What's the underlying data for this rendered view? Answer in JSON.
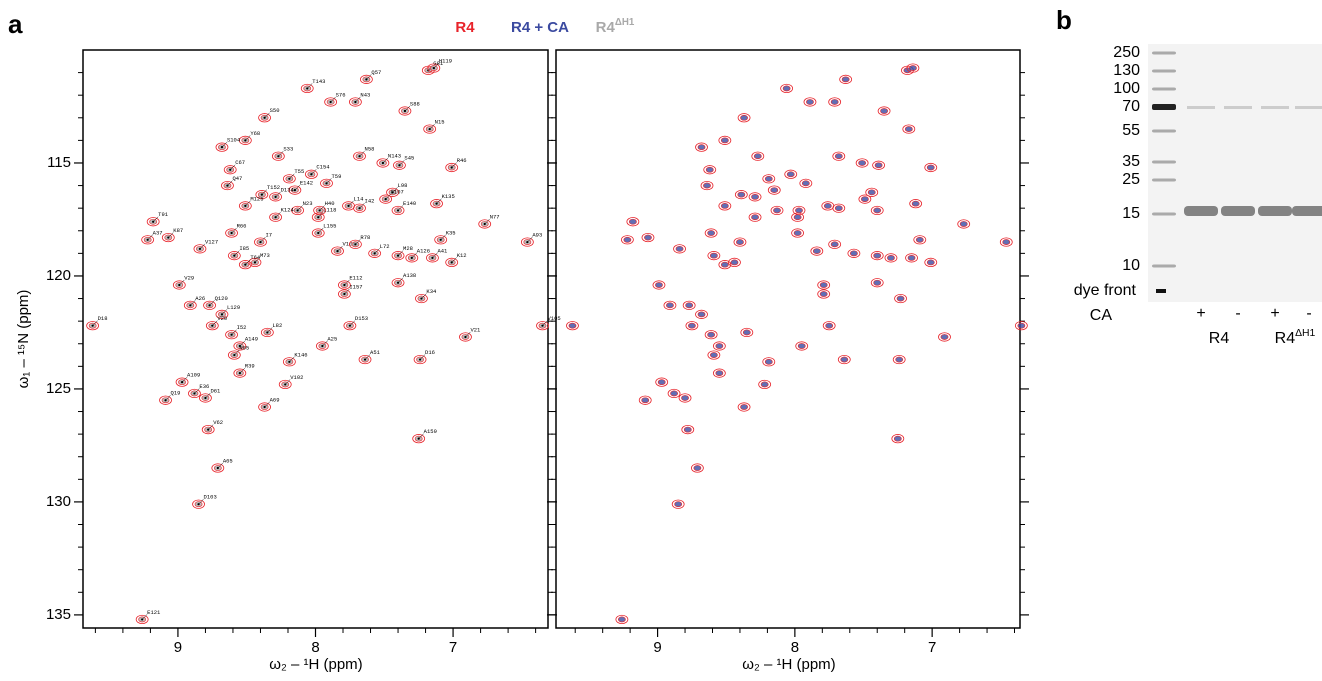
{
  "figure": {
    "panel_a": {
      "letter": "a",
      "legend": [
        {
          "name": "R4",
          "color": "#e8232a"
        },
        {
          "name": "R4 + CA",
          "color": "#3b4aa0"
        },
        {
          "name": "R4",
          "sup": "ΔH1",
          "color": "#a9a9a9"
        }
      ],
      "xlabel": "ω₂ – ¹H (ppm)",
      "ylabel": "ω₁ – ¹⁵N (ppm)",
      "xticks": [
        9,
        8,
        7
      ],
      "x_minor_ticks": [
        9.6,
        9.4,
        9.2,
        8.8,
        8.6,
        8.4,
        8.2,
        7.8,
        7.6,
        7.4,
        7.2,
        6.8,
        6.6,
        6.4
      ],
      "yticks": [
        115,
        120,
        125,
        130,
        135
      ],
      "y_minor_ticks": [
        111,
        112,
        113,
        114,
        116,
        117,
        118,
        119,
        121,
        122,
        123,
        124,
        126,
        127,
        128,
        129,
        131,
        132,
        133,
        134
      ],
      "plots": [
        {
          "xlim": [
            9.69,
            6.31
          ],
          "ylim": [
            110,
            135.58
          ],
          "overlay": 2,
          "labeled": true
        },
        {
          "xlim": [
            9.74,
            6.36
          ],
          "ylim": [
            110,
            135.58
          ],
          "overlay": 1,
          "labeled": false
        }
      ],
      "peaks": [
        {
          "label": "G81",
          "x": 7.18,
          "y": 110.9
        },
        {
          "label": "H119",
          "x": 7.14,
          "y": 110.8
        },
        {
          "label": "T143",
          "x": 8.06,
          "y": 111.7
        },
        {
          "label": "Q57",
          "x": 7.63,
          "y": 111.3
        },
        {
          "label": "S76",
          "x": 7.89,
          "y": 112.3
        },
        {
          "label": "N43",
          "x": 7.71,
          "y": 112.3
        },
        {
          "label": "S88",
          "x": 7.35,
          "y": 112.7
        },
        {
          "label": "S50",
          "x": 8.37,
          "y": 113.0
        },
        {
          "label": "N15",
          "x": 7.17,
          "y": 113.5
        },
        {
          "label": "Y68",
          "x": 8.51,
          "y": 114.0
        },
        {
          "label": "S104",
          "x": 8.68,
          "y": 114.3
        },
        {
          "label": "S33",
          "x": 8.27,
          "y": 114.7
        },
        {
          "label": "N58",
          "x": 7.68,
          "y": 114.7
        },
        {
          "label": "N143",
          "x": 7.51,
          "y": 115.0
        },
        {
          "label": "S45",
          "x": 7.39,
          "y": 115.1
        },
        {
          "label": "R46",
          "x": 7.01,
          "y": 115.2
        },
        {
          "label": "C67",
          "x": 8.62,
          "y": 115.3
        },
        {
          "label": "C154",
          "x": 8.03,
          "y": 115.5
        },
        {
          "label": "T55",
          "x": 8.19,
          "y": 115.7
        },
        {
          "label": "T59",
          "x": 7.92,
          "y": 115.9
        },
        {
          "label": "Q47",
          "x": 8.64,
          "y": 116.0
        },
        {
          "label": "E142",
          "x": 8.15,
          "y": 116.2
        },
        {
          "label": "T152",
          "x": 8.39,
          "y": 116.4
        },
        {
          "label": "D134",
          "x": 8.29,
          "y": 116.5
        },
        {
          "label": "L98",
          "x": 7.44,
          "y": 116.3
        },
        {
          "label": "K135",
          "x": 7.12,
          "y": 116.8
        },
        {
          "label": "S107",
          "x": 7.49,
          "y": 116.6
        },
        {
          "label": "M125",
          "x": 8.51,
          "y": 116.9
        },
        {
          "label": "N23",
          "x": 8.13,
          "y": 117.1
        },
        {
          "label": "H40",
          "x": 7.97,
          "y": 117.1
        },
        {
          "label": "L14",
          "x": 7.76,
          "y": 116.9
        },
        {
          "label": "I42",
          "x": 7.68,
          "y": 117.0
        },
        {
          "label": "E140",
          "x": 7.4,
          "y": 117.1
        },
        {
          "label": "K124",
          "x": 8.29,
          "y": 117.4
        },
        {
          "label": "L118",
          "x": 7.98,
          "y": 117.4
        },
        {
          "label": "T91",
          "x": 9.18,
          "y": 117.6
        },
        {
          "label": "N77",
          "x": 6.77,
          "y": 117.7
        },
        {
          "label": "A37",
          "x": 9.22,
          "y": 118.4
        },
        {
          "label": "K87",
          "x": 9.07,
          "y": 118.3
        },
        {
          "label": "V127",
          "x": 8.84,
          "y": 118.8
        },
        {
          "label": "K35",
          "x": 7.09,
          "y": 118.4
        },
        {
          "label": "A93",
          "x": 6.46,
          "y": 118.5
        },
        {
          "label": "R66",
          "x": 8.61,
          "y": 118.1
        },
        {
          "label": "I7",
          "x": 8.4,
          "y": 118.5
        },
        {
          "label": "L155",
          "x": 7.98,
          "y": 118.1
        },
        {
          "label": "V108",
          "x": 7.84,
          "y": 118.9
        },
        {
          "label": "R78",
          "x": 7.71,
          "y": 118.6
        },
        {
          "label": "A41",
          "x": 7.15,
          "y": 119.2
        },
        {
          "label": "K12",
          "x": 7.01,
          "y": 119.4
        },
        {
          "label": "A126",
          "x": 7.3,
          "y": 119.2
        },
        {
          "label": "M28",
          "x": 7.4,
          "y": 119.1
        },
        {
          "label": "I85",
          "x": 8.59,
          "y": 119.1
        },
        {
          "label": "L72",
          "x": 7.57,
          "y": 119.0
        },
        {
          "label": "M73",
          "x": 8.44,
          "y": 119.4
        },
        {
          "label": "T64",
          "x": 8.51,
          "y": 119.5
        },
        {
          "label": "V29",
          "x": 8.99,
          "y": 120.4
        },
        {
          "label": "K34",
          "x": 7.23,
          "y": 121.0
        },
        {
          "label": "A138",
          "x": 7.4,
          "y": 120.3
        },
        {
          "label": "E112",
          "x": 7.79,
          "y": 120.4
        },
        {
          "label": "I157",
          "x": 7.79,
          "y": 120.8
        },
        {
          "label": "A26",
          "x": 8.91,
          "y": 121.3
        },
        {
          "label": "Q120",
          "x": 8.77,
          "y": 121.3
        },
        {
          "label": "L129",
          "x": 8.68,
          "y": 121.7
        },
        {
          "label": "V20",
          "x": 8.75,
          "y": 122.2
        },
        {
          "label": "D18",
          "x": 9.62,
          "y": 122.2
        },
        {
          "label": "V105",
          "x": 6.35,
          "y": 122.2
        },
        {
          "label": "V21",
          "x": 6.91,
          "y": 122.7
        },
        {
          "label": "D153",
          "x": 7.75,
          "y": 122.2
        },
        {
          "label": "L82",
          "x": 8.35,
          "y": 122.5
        },
        {
          "label": "I52",
          "x": 8.61,
          "y": 122.6
        },
        {
          "label": "A149",
          "x": 8.55,
          "y": 123.1
        },
        {
          "label": "A25",
          "x": 7.95,
          "y": 123.1
        },
        {
          "label": "N65",
          "x": 8.59,
          "y": 123.5
        },
        {
          "label": "A51",
          "x": 7.64,
          "y": 123.7
        },
        {
          "label": "D16",
          "x": 7.24,
          "y": 123.7
        },
        {
          "label": "K146",
          "x": 8.19,
          "y": 123.8
        },
        {
          "label": "R39",
          "x": 8.55,
          "y": 124.3
        },
        {
          "label": "V102",
          "x": 8.22,
          "y": 124.8
        },
        {
          "label": "A109",
          "x": 8.97,
          "y": 124.7
        },
        {
          "label": "E36",
          "x": 8.88,
          "y": 125.2
        },
        {
          "label": "D61",
          "x": 8.8,
          "y": 125.4
        },
        {
          "label": "Q19",
          "x": 9.09,
          "y": 125.5
        },
        {
          "label": "A69",
          "x": 8.37,
          "y": 125.8
        },
        {
          "label": "V62",
          "x": 8.78,
          "y": 126.8
        },
        {
          "label": "A159",
          "x": 7.25,
          "y": 127.2
        },
        {
          "label": "A65",
          "x": 8.71,
          "y": 128.5
        },
        {
          "label": "D103",
          "x": 8.85,
          "y": 130.1
        },
        {
          "label": "E121",
          "x": 9.26,
          "y": 135.2
        }
      ]
    },
    "panel_b": {
      "letter": "b",
      "ladder": [
        250,
        130,
        100,
        70,
        55,
        35,
        25,
        15,
        10
      ],
      "dye_front": "dye front",
      "row_label": "CA",
      "lanes": [
        "+",
        "-",
        "+",
        "-"
      ],
      "groups": [
        {
          "base": "R4"
        },
        {
          "base": "R4",
          "sup": "ΔH1"
        }
      ]
    }
  }
}
